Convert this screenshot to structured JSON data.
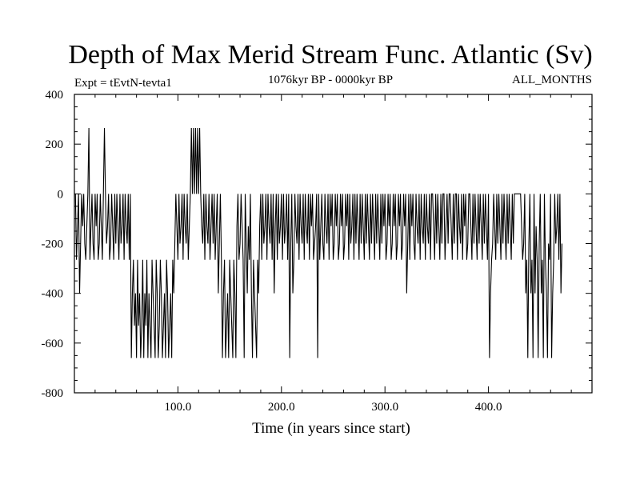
{
  "chart_data": {
    "type": "line",
    "title": "Depth of Max Merid Stream Func. Atlantic (Sv)",
    "subtitle_left": "Expt = tEvtN-tevta1",
    "subtitle_center": "1076kyr BP - 0000kyr BP",
    "subtitle_right": "ALL_MONTHS",
    "xlabel": "Time (in years since start)",
    "ylabel": "",
    "xlim": [
      0,
      500
    ],
    "ylim": [
      -800,
      400
    ],
    "x_ticks": [
      100,
      200,
      300,
      400
    ],
    "x_tick_labels": [
      "100.0",
      "200.0",
      "300.0",
      "400.0"
    ],
    "y_ticks": [
      400,
      200,
      0,
      -200,
      -400,
      -600,
      -800
    ],
    "y_tick_labels": [
      "400",
      "200",
      "0",
      "-200",
      "-400",
      "-600",
      "-800"
    ],
    "grid": false,
    "series": [
      {
        "name": "Depth of Max Merid Stream Func",
        "x_start": 1,
        "x_step": 1,
        "values": [
          0,
          -265,
          -130,
          0,
          -400,
          -200,
          0,
          -130,
          0,
          -200,
          -265,
          -130,
          0,
          265,
          -265,
          -130,
          0,
          -200,
          -265,
          0,
          -130,
          0,
          -265,
          -200,
          0,
          -130,
          -265,
          0,
          265,
          0,
          -200,
          -130,
          0,
          -265,
          -200,
          0,
          -130,
          -265,
          0,
          -200,
          0,
          -130,
          -265,
          0,
          -200,
          -130,
          0,
          -265,
          0,
          -130,
          -200,
          0,
          -265,
          0,
          -660,
          -400,
          -265,
          -530,
          -400,
          -660,
          -265,
          -530,
          -400,
          -660,
          -530,
          -265,
          -660,
          -400,
          -530,
          -265,
          -660,
          -400,
          -530,
          -660,
          -265,
          -400,
          -530,
          -660,
          -265,
          -400,
          -660,
          -530,
          -265,
          -400,
          -660,
          -530,
          -400,
          -660,
          -265,
          -400,
          -660,
          -530,
          -400,
          -660,
          -265,
          -400,
          -200,
          0,
          -130,
          -265,
          0,
          -200,
          -130,
          0,
          -265,
          0,
          -130,
          -200,
          0,
          -265,
          -130,
          0,
          265,
          0,
          265,
          0,
          265,
          0,
          265,
          0,
          265,
          0,
          -130,
          -200,
          0,
          -265,
          0,
          -130,
          -200,
          0,
          -265,
          -130,
          0,
          -200,
          0,
          -265,
          -130,
          0,
          -400,
          -200,
          0,
          -265,
          -660,
          -400,
          -265,
          -660,
          -530,
          -400,
          -660,
          -265,
          -400,
          -530,
          -660,
          -265,
          -400,
          -660,
          -130,
          0,
          -265,
          -200,
          0,
          -130,
          -265,
          -660,
          0,
          -200,
          -400,
          -130,
          -265,
          0,
          -400,
          -660,
          -265,
          -400,
          -530,
          -660,
          -265,
          -400,
          -130,
          0,
          -265,
          0,
          -200,
          -130,
          0,
          -265,
          0,
          -130,
          -200,
          0,
          -265,
          0,
          -400,
          -130,
          0,
          -265,
          0,
          -200,
          -130,
          0,
          -265,
          0,
          -200,
          -130,
          0,
          -265,
          0,
          -660,
          -200,
          0,
          -400,
          -265,
          0,
          -130,
          -200,
          0,
          -265,
          0,
          -130,
          -200,
          0,
          -265,
          0,
          -130,
          -200,
          0,
          -265,
          0,
          -130,
          0,
          -265,
          -200,
          -130,
          0,
          -660,
          0,
          -265,
          -130,
          0,
          -200,
          -265,
          0,
          -130,
          -200,
          0,
          -265,
          0,
          -130,
          0,
          -265,
          -200,
          0,
          -130,
          0,
          -265,
          -200,
          0,
          -130,
          0,
          -265,
          -200,
          0,
          -130,
          0,
          -265,
          0,
          -200,
          -130,
          0,
          -265,
          0,
          -200,
          0,
          -130,
          -265,
          0,
          -200,
          0,
          -130,
          -265,
          0,
          -200,
          0,
          -130,
          -265,
          0,
          -200,
          0,
          -130,
          -265,
          0,
          -200,
          0,
          -130,
          -265,
          0,
          -200,
          0,
          -130,
          0,
          -265,
          -200,
          0,
          -130,
          0,
          -265,
          -200,
          0,
          -130,
          0,
          -265,
          -200,
          0,
          -130,
          0,
          -265,
          -200,
          0,
          -130,
          0,
          -400,
          -200,
          0,
          -265,
          0,
          -130,
          0,
          -200,
          -265,
          0,
          -130,
          -200,
          0,
          -265,
          0,
          -130,
          -200,
          0,
          -265,
          0,
          -130,
          -200,
          0,
          -265,
          0,
          0,
          -130,
          -265,
          0,
          -200,
          0,
          -130,
          -265,
          0,
          -200,
          0,
          0,
          -265,
          -130,
          0,
          -200,
          0,
          0,
          -130,
          -265,
          0,
          -200,
          0,
          0,
          -265,
          0,
          -130,
          -200,
          0,
          -265,
          0,
          -130,
          0,
          -265,
          -200,
          0,
          0,
          -130,
          -265,
          0,
          -200,
          0,
          -130,
          -265,
          0,
          -200,
          0,
          -130,
          -265,
          0,
          -200,
          0,
          -130,
          -265,
          0,
          -660,
          -400,
          -265,
          -200,
          0,
          -130,
          -265,
          0,
          -200,
          0,
          -130,
          -265,
          0,
          -200,
          0,
          -130,
          -265,
          0,
          -200,
          0,
          -130,
          -265,
          0,
          -200,
          0,
          0,
          0,
          0,
          0,
          0,
          0,
          -130,
          -265,
          -200,
          0,
          -400,
          -265,
          -660,
          -200,
          0,
          -400,
          -265,
          -660,
          0,
          -400,
          -130,
          -265,
          -660,
          -200,
          0,
          -400,
          -265,
          -660,
          0,
          -265,
          -400,
          -660,
          -200,
          -265,
          0,
          -660,
          -400,
          -265,
          0,
          -200,
          -130,
          0,
          -265,
          0,
          -400,
          -200
        ]
      }
    ]
  }
}
